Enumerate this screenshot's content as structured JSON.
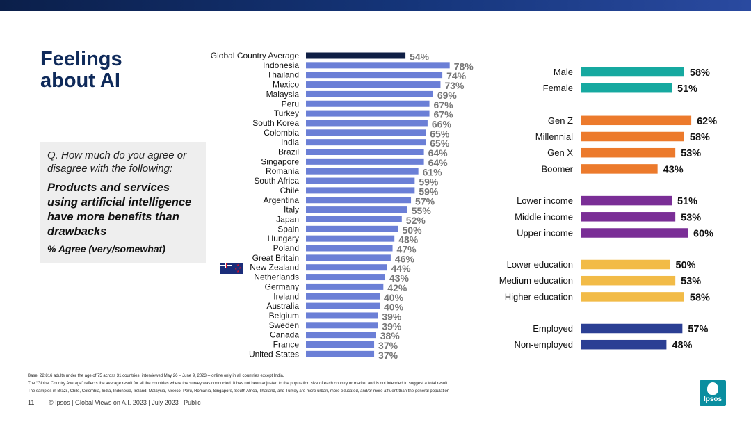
{
  "page": {
    "title_line1": "Feelings",
    "title_line2": "about AI"
  },
  "question": {
    "prompt": "Q. How much do you agree or disagree with the following:",
    "statement": "Products and services using artificial intelligence have more benefits than drawbacks",
    "measure": "% Agree (very/somewhat)"
  },
  "colors": {
    "global_bar": "#0f1f45",
    "country_bar": "#6b7fd6",
    "gender": "#16a9a0",
    "generation": "#ec7a2c",
    "income": "#7a2e96",
    "education": "#f2bb47",
    "employment": "#2b3f94",
    "value_text": "#777777",
    "dark_text": "#111111"
  },
  "chart_data": [
    {
      "type": "bar",
      "orientation": "horizontal",
      "title": "",
      "unit": "%",
      "xlim": [
        0,
        100
      ],
      "categories": [
        "Global Country Average",
        "Indonesia",
        "Thailand",
        "Mexico",
        "Malaysia",
        "Peru",
        "Turkey",
        "South Korea",
        "Colombia",
        "India",
        "Brazil",
        "Singapore",
        "Romania",
        "South Africa",
        "Chile",
        "Argentina",
        "Italy",
        "Japan",
        "Spain",
        "Hungary",
        "Poland",
        "Great Britain",
        "New Zealand",
        "Netherlands",
        "Germany",
        "Ireland",
        "Australia",
        "Belgium",
        "Sweden",
        "Canada",
        "France",
        "United States"
      ],
      "values": [
        54,
        78,
        74,
        73,
        69,
        67,
        67,
        66,
        65,
        65,
        64,
        64,
        61,
        59,
        59,
        57,
        55,
        52,
        50,
        48,
        47,
        46,
        44,
        43,
        42,
        40,
        40,
        39,
        39,
        38,
        37,
        37
      ],
      "labels": [
        "54%",
        "78%",
        "74%",
        "73%",
        "69%",
        "67%",
        "67%",
        "66%",
        "65%",
        "65%",
        "64%",
        "64%",
        "61%",
        "59%",
        "59%",
        "57%",
        "55%",
        "52%",
        "50%",
        "48%",
        "47%",
        "46%",
        "44%",
        "43%",
        "42%",
        "40%",
        "40%",
        "39%",
        "39%",
        "38%",
        "37%",
        "37%"
      ],
      "highlight": "Global Country Average"
    },
    {
      "type": "bar",
      "orientation": "horizontal",
      "title": "",
      "unit": "%",
      "xlim": [
        0,
        100
      ],
      "groups": [
        {
          "name": "gender",
          "color_key": "gender",
          "categories": [
            "Male",
            "Female"
          ],
          "values": [
            58,
            51
          ],
          "labels": [
            "58%",
            "51%"
          ]
        },
        {
          "name": "generation",
          "color_key": "generation",
          "categories": [
            "Gen Z",
            "Millennial",
            "Gen X",
            "Boomer"
          ],
          "values": [
            62,
            58,
            53,
            43
          ],
          "labels": [
            "62%",
            "58%",
            "53%",
            "43%"
          ]
        },
        {
          "name": "income",
          "color_key": "income",
          "categories": [
            "Lower income",
            "Middle income",
            "Upper income"
          ],
          "values": [
            51,
            53,
            60
          ],
          "labels": [
            "51%",
            "53%",
            "60%"
          ]
        },
        {
          "name": "education",
          "color_key": "education",
          "categories": [
            "Lower education",
            "Medium education",
            "Higher education"
          ],
          "values": [
            50,
            53,
            58
          ],
          "labels": [
            "50%",
            "53%",
            "58%"
          ]
        },
        {
          "name": "employment",
          "color_key": "employment",
          "categories": [
            "Employed",
            "Non-employed"
          ],
          "values": [
            57,
            48
          ],
          "labels": [
            "57%",
            "48%"
          ]
        }
      ]
    }
  ],
  "footnotes": [
    "Base: 22,816 adults under the age of 75 across 31 countries, interviewed May 26 – June 9, 2023 -- online only in all countries except India.",
    "The “Global Country Average” reflects the average result for all the countries where the survey was conducted. It has not been adjusted to the population size of each country or market and is not intended to suggest a total result.",
    "The samples in Brazil, Chile, Colombia, India, Indonesia, Ireland, Malaysia, Mexico, Peru, Romania, Singapore, South Africa, Thailand, and Turkey are more urban, more educated, and/or more affluent than the general population"
  ],
  "footer": {
    "page_number": "11",
    "text": "© Ipsos | Global Views on A.I. 2023 | July 2023 | Public"
  },
  "logo": {
    "brand": "Ipsos"
  },
  "flag_icon": "new-zealand-flag-icon"
}
